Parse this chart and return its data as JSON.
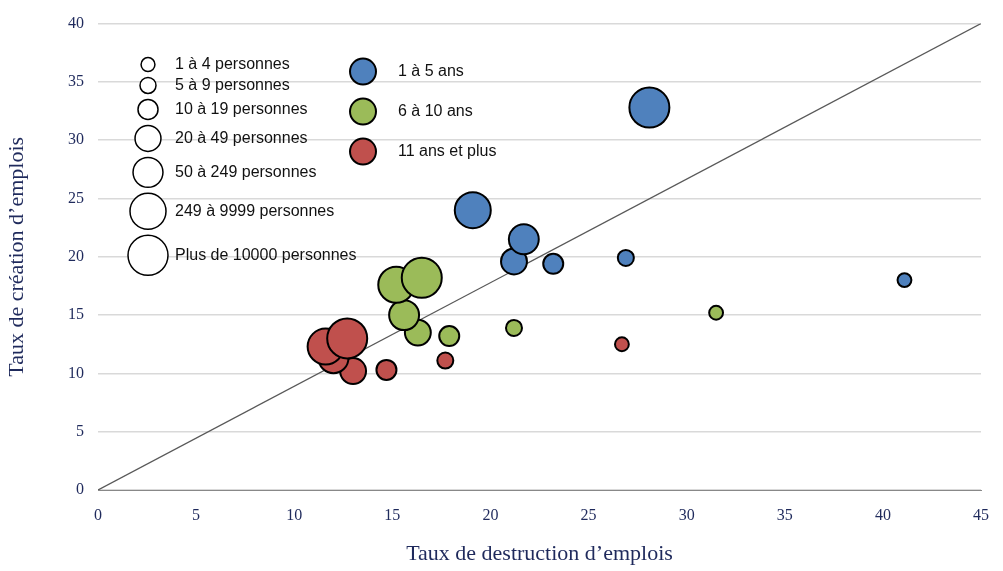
{
  "chart_data": {
    "type": "bubble",
    "xlabel": "Taux de destruction d’emplois",
    "ylabel": "Taux de création d’emplois",
    "xlim": [
      0,
      45
    ],
    "xticks": [
      0,
      5,
      10,
      15,
      20,
      25,
      30,
      35,
      40,
      45
    ],
    "ylim": [
      0,
      40
    ],
    "yticks": [
      0,
      5,
      10,
      15,
      20,
      25,
      30,
      35,
      40
    ],
    "grid": "y",
    "legend": "top left",
    "size_legend": [
      {
        "value": 0.12,
        "label": "1 à 4 personnes"
      },
      {
        "value": 0.16,
        "label": "5 à 9 personnes"
      },
      {
        "value": 0.25,
        "label": "10 à 19 personnes"
      },
      {
        "value": 0.42,
        "label": "20 à 49 personnes"
      },
      {
        "value": 0.56,
        "label": "50 à 249 personnes"
      },
      {
        "value": 0.81,
        "label": "249 à 9999 personnes"
      },
      {
        "value": 1,
        "label": "Plus de 10000 personnes"
      }
    ],
    "series": [
      {
        "name": "1 à 5 ans",
        "color": "#4f81bd",
        "x": [
          41.1,
          26.9,
          23.2,
          21.2,
          21.7,
          19.1,
          28.1
        ],
        "values": [
          18,
          19.9,
          19.4,
          19.6,
          21.5,
          24,
          32.8
        ],
        "sizes": [
          0.12,
          0.16,
          0.25,
          0.42,
          0.56,
          0.81,
          1
        ]
      },
      {
        "name": "6 à 10 ans",
        "color": "#9bbb59",
        "x": [
          31.5,
          21.2,
          17.9,
          16.3,
          15.6,
          15.2,
          16.5
        ],
        "values": [
          15.2,
          13.9,
          13.2,
          13.5,
          15,
          17.6,
          18.2
        ],
        "sizes": [
          0.12,
          0.16,
          0.25,
          0.42,
          0.56,
          0.81,
          1
        ]
      },
      {
        "name": "11 ans et plus",
        "color": "#c0504d",
        "x": [
          26.7,
          17.7,
          14.7,
          13,
          12,
          11.6,
          12.7
        ],
        "values": [
          12.5,
          11.1,
          10.3,
          10.2,
          11.3,
          12.3,
          13
        ],
        "sizes": [
          0.12,
          0.16,
          0.25,
          0.42,
          0.56,
          0.81,
          1
        ]
      },
      {
        "type": "line",
        "color": "#595959",
        "x": [
          0,
          45
        ],
        "values": [
          0,
          40
        ]
      }
    ]
  }
}
